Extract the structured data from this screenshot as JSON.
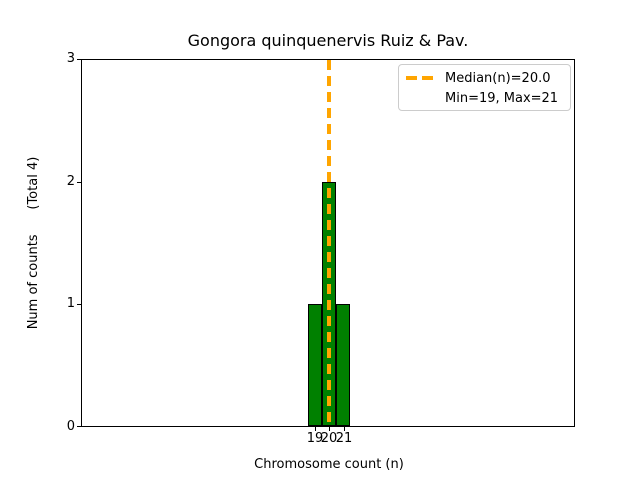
{
  "chart_data": {
    "type": "bar",
    "title": "Gongora quinquenervis Ruiz & Pav.",
    "xlabel": "Chromosome count (n)",
    "ylabel": "Num of counts      (Total 4)",
    "categories": [
      19,
      20,
      21
    ],
    "values": [
      1,
      2,
      1
    ],
    "total_counts": 4,
    "median_n": 20.0,
    "min_n": 19,
    "max_n": 21,
    "ylim": [
      0,
      3
    ],
    "yticks": [
      0,
      1,
      2,
      3
    ],
    "ytick_labels": [
      "0",
      "1",
      "2",
      "3"
    ],
    "xtick_labels": [
      "19",
      "20",
      "21"
    ],
    "bar_color": "#008000",
    "bar_edge_color": "#000000",
    "median_line_color": "#ffa500",
    "median_line_style": "dashed",
    "legend": [
      "Median(n)=20.0",
      "Min=19, Max=21"
    ],
    "legend_position": "upper right",
    "grid": false
  }
}
